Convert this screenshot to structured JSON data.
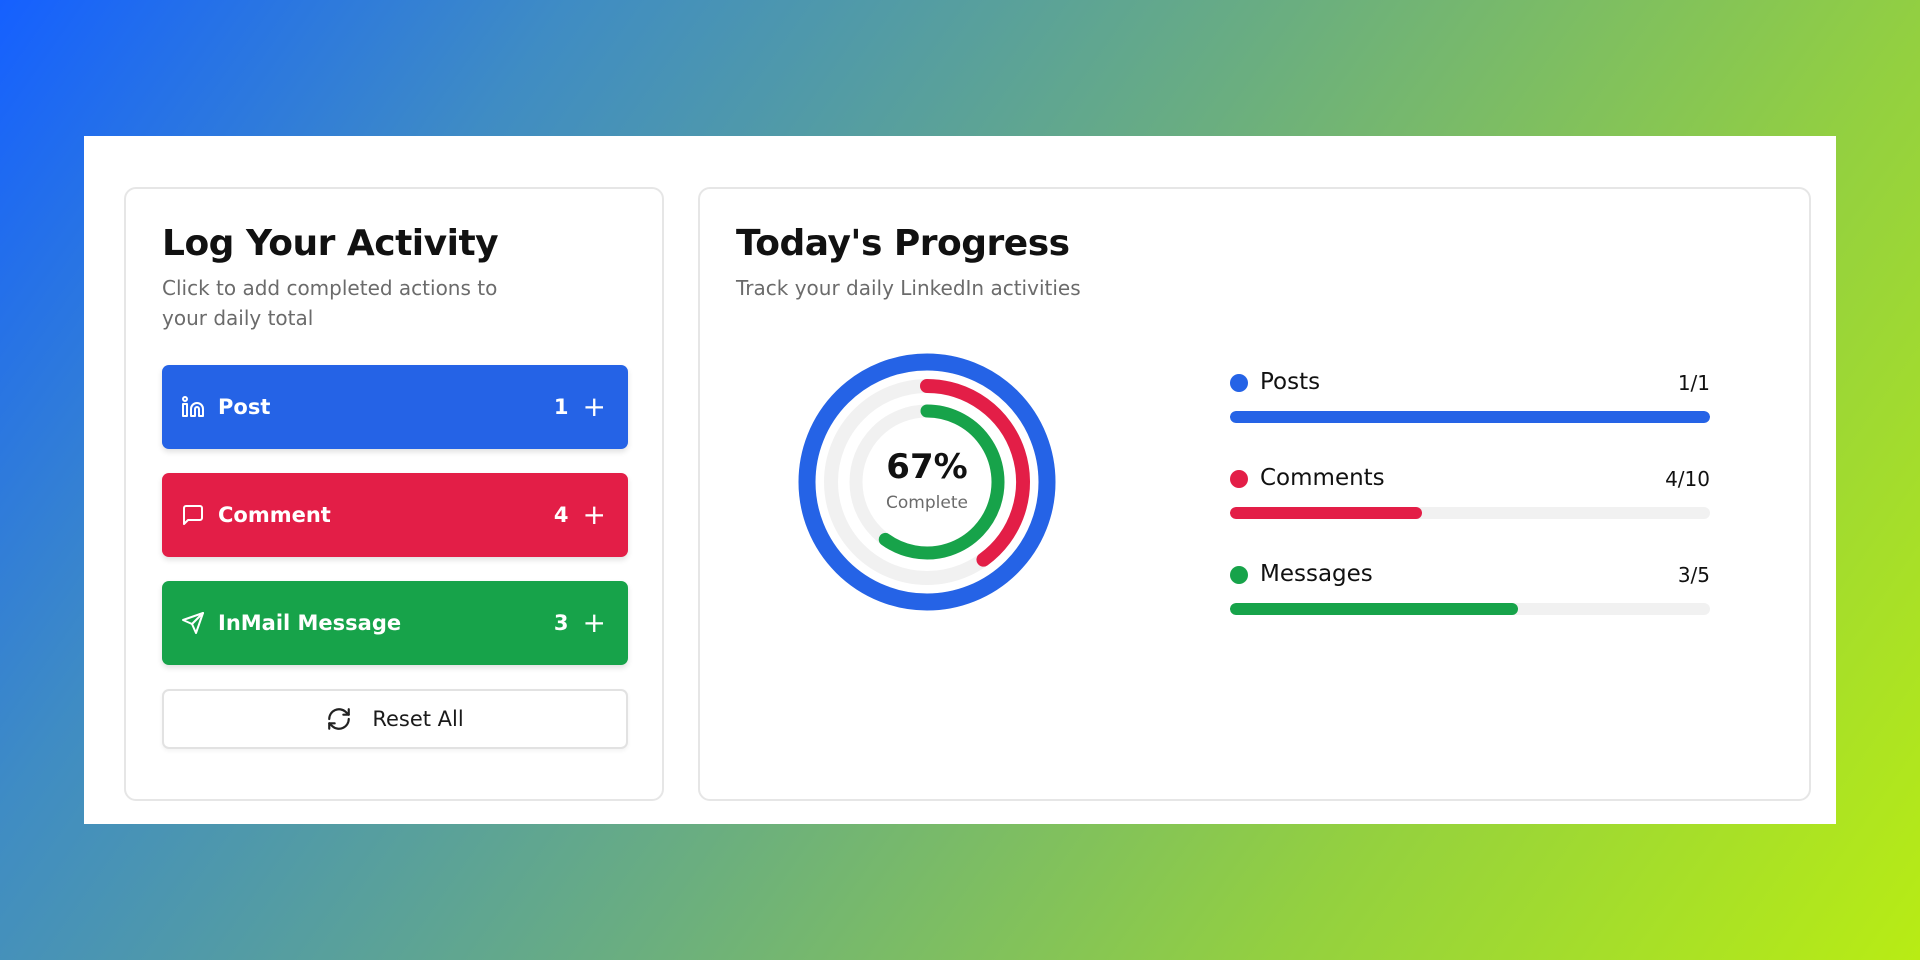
{
  "colors": {
    "post": "#2563e6",
    "comment": "#e31e47",
    "inmail": "#17a34a",
    "track": "#f1f1f1"
  },
  "activity": {
    "title": "Log Your Activity",
    "subtitle": "Click to add completed actions to your daily total",
    "buttons": [
      {
        "label": "Post",
        "count": "1",
        "icon": "linkedin-icon",
        "plus": "+"
      },
      {
        "label": "Comment",
        "count": "4",
        "icon": "comment-icon",
        "plus": "+"
      },
      {
        "label": "InMail Message",
        "count": "3",
        "icon": "send-icon",
        "plus": "+"
      }
    ],
    "reset": {
      "label": "Reset All",
      "icon": "refresh-icon"
    }
  },
  "progress": {
    "title": "Today's Progress",
    "subtitle": "Track your daily LinkedIn activities",
    "overall": {
      "percent": "67%",
      "label": "Complete"
    },
    "rings": [
      {
        "name": "Posts",
        "fraction": 1.0
      },
      {
        "name": "Comments",
        "fraction": 0.4
      },
      {
        "name": "Messages",
        "fraction": 0.6
      }
    ],
    "stats": [
      {
        "name": "Posts",
        "frac": "1/1",
        "value": 1,
        "goal": 1
      },
      {
        "name": "Comments",
        "frac": "4/10",
        "value": 4,
        "goal": 10
      },
      {
        "name": "Messages",
        "frac": "3/5",
        "value": 3,
        "goal": 5
      }
    ]
  }
}
